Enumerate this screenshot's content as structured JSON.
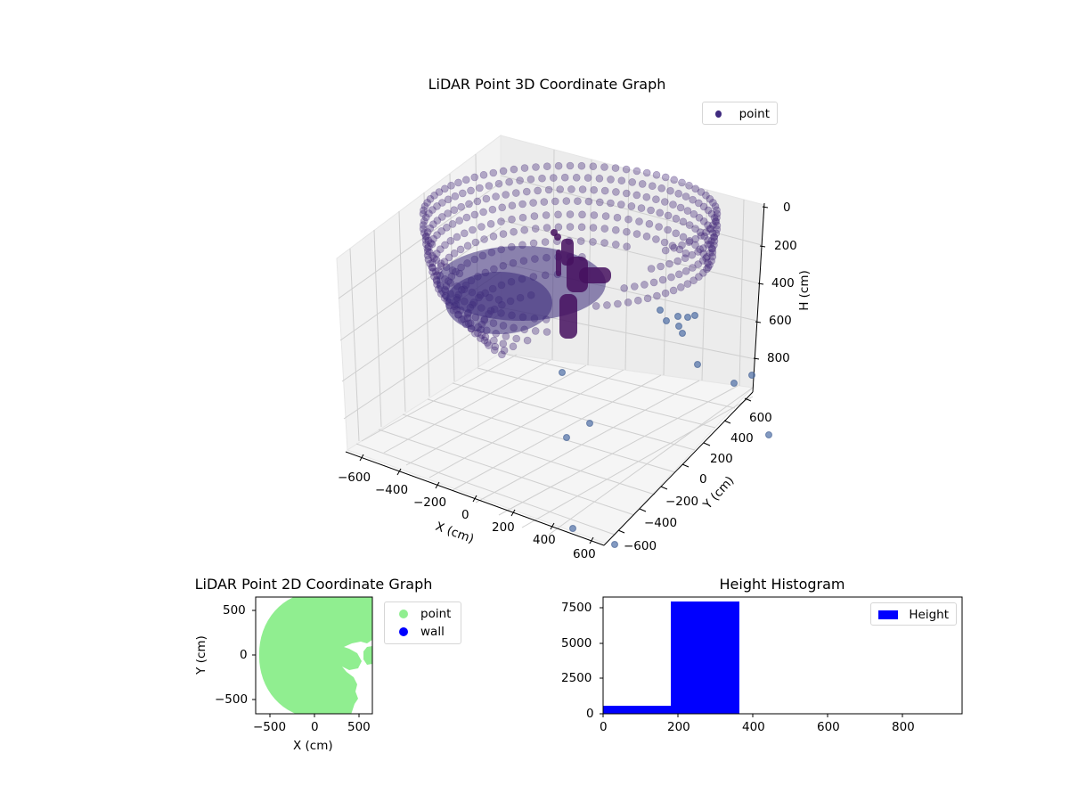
{
  "chart_data": [
    {
      "type": "scatter",
      "projection": "3d",
      "title": "LiDAR Point 3D Coordinate Graph",
      "xlabel": "X (cm)",
      "ylabel": "Y (cm)",
      "zlabel": "H (cm)",
      "x_ticks": [
        "−600",
        "−400",
        "−200",
        "0",
        "200",
        "400",
        "600"
      ],
      "y_ticks": [
        "−600",
        "−400",
        "−200",
        "0",
        "200",
        "400",
        "600"
      ],
      "z_ticks": [
        "0",
        "200",
        "400",
        "600",
        "800"
      ],
      "xlim": [
        -650,
        650
      ],
      "ylim": [
        -650,
        650
      ],
      "zlim": [
        0,
        950
      ],
      "z_inverted": true,
      "legend": [
        {
          "label": "point",
          "color": "#3f2a7f"
        }
      ],
      "legend_position": "upper right",
      "colormap": "viridis-like purple",
      "description": "Dense ring/dome of points radius ~600cm at height ~200-400cm, with a few outliers near H ~900"
    },
    {
      "type": "scatter",
      "title": "LiDAR Point 2D Coordinate Graph",
      "xlabel": "X (cm)",
      "ylabel": "Y (cm)",
      "x_ticks": [
        "−500",
        "0",
        "500"
      ],
      "y_ticks": [
        "500",
        "0",
        "−500"
      ],
      "xlim": [
        -650,
        650
      ],
      "ylim": [
        -650,
        650
      ],
      "legend": [
        {
          "label": "point",
          "color": "#90ee90"
        },
        {
          "label": "wall",
          "color": "#0000ff"
        }
      ],
      "legend_position": "outside upper right"
    },
    {
      "type": "bar",
      "subtype": "histogram",
      "title": "Height Histogram",
      "xlabel": "",
      "ylabel": "",
      "bins": [
        [
          0,
          183
        ],
        [
          183,
          366
        ],
        [
          366,
          549
        ],
        [
          549,
          732
        ],
        [
          732,
          915
        ]
      ],
      "values": [
        550,
        7900,
        0,
        0,
        5
      ],
      "x_ticks": [
        "0",
        "200",
        "400",
        "600",
        "800"
      ],
      "y_ticks": [
        "0",
        "2500",
        "5000",
        "7500"
      ],
      "xlim": [
        0,
        960
      ],
      "ylim": [
        0,
        8300
      ],
      "legend": [
        {
          "label": "Height",
          "color": "#0000ff"
        }
      ],
      "legend_position": "upper right"
    }
  ],
  "plot3d": {
    "title": "LiDAR Point 3D Coordinate Graph",
    "legend_label": "point",
    "xlabel": "X (cm)",
    "ylabel": "Y (cm)",
    "zlabel": "H (cm)",
    "x_ticks": [
      "−600",
      "−400",
      "−200",
      "0",
      "200",
      "400",
      "600"
    ],
    "y_ticks": [
      "−600",
      "−400",
      "−200",
      "0",
      "200",
      "400",
      "600"
    ],
    "z_ticks": [
      "0",
      "200",
      "400",
      "600",
      "800"
    ]
  },
  "plot2d": {
    "title": "LiDAR Point 2D Coordinate Graph",
    "xlabel": "X (cm)",
    "ylabel": "Y (cm)",
    "x_ticks": [
      "−500",
      "0",
      "500"
    ],
    "y_ticks": [
      "500",
      "0",
      "−500"
    ],
    "legend": [
      {
        "label": "point",
        "color": "#90ee90"
      },
      {
        "label": "wall",
        "color": "#0000ff"
      }
    ]
  },
  "histogram": {
    "title": "Height Histogram",
    "legend_label": "Height",
    "x_ticks": [
      "0",
      "200",
      "400",
      "600",
      "800"
    ],
    "y_ticks": [
      "0",
      "2500",
      "5000",
      "7500"
    ]
  }
}
